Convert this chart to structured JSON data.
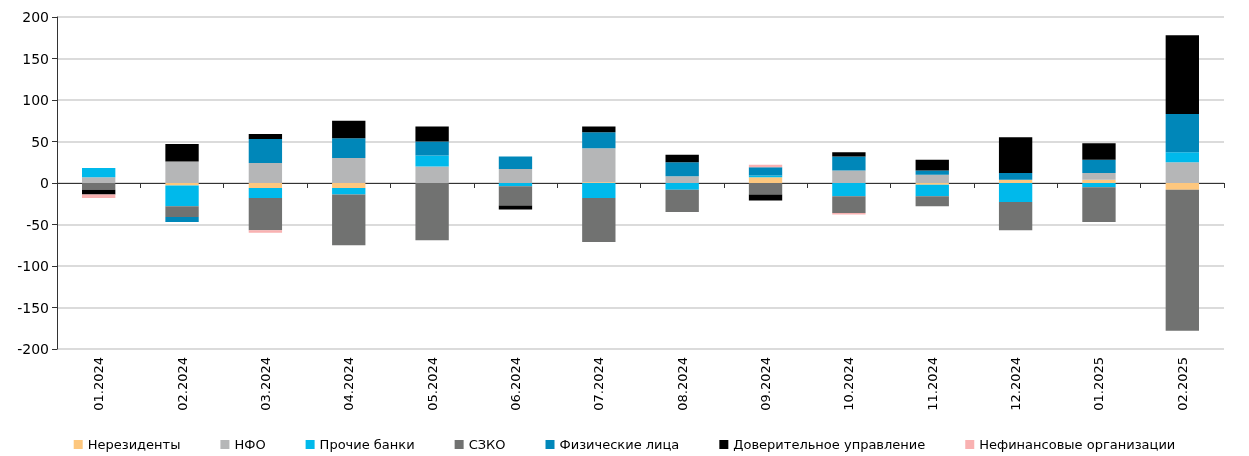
{
  "chart_data": {
    "type": "bar",
    "stacked": true,
    "categories": [
      "01.2024",
      "02.2024",
      "03.2024",
      "04.2024",
      "05.2024",
      "06.2024",
      "07.2024",
      "08.2024",
      "09.2024",
      "10.2024",
      "11.2024",
      "12.2024",
      "01.2025",
      "02.2025"
    ],
    "series": [
      {
        "name": "Нерезиденты",
        "color": "#fdc77e",
        "values": [
          null,
          -3,
          -6,
          -6,
          null,
          null,
          1,
          null,
          7,
          null,
          -2,
          4,
          4,
          -8
        ]
      },
      {
        "name": "НФО",
        "color": "#b5b6b7",
        "values": [
          7,
          26,
          24,
          30,
          20,
          17,
          41,
          8,
          null,
          15,
          10,
          null,
          8,
          25
        ]
      },
      {
        "name": "Прочие банки",
        "color": "#00b9eb",
        "values": [
          11,
          -25,
          -12,
          -8,
          13,
          -4,
          -18,
          -8,
          2,
          -16,
          -14,
          -23,
          -5,
          12
        ]
      },
      {
        "name": "СЗКО",
        "color": "#717271",
        "values": [
          -8,
          -13,
          -39,
          -61,
          -69,
          -23,
          -53,
          -27,
          -14,
          -20,
          -12,
          -34,
          -42,
          -170
        ]
      },
      {
        "name": "Физические лица",
        "color": "#0087b9",
        "values": [
          null,
          -6,
          29,
          24,
          17,
          15,
          19,
          17,
          10,
          17,
          5,
          8,
          16,
          46
        ]
      },
      {
        "name": "Доверительное управление",
        "color": "#000000",
        "values": [
          -6,
          21,
          6,
          21,
          18,
          -5,
          7,
          9,
          -7,
          5,
          13,
          43,
          20,
          95
        ]
      },
      {
        "name": "Нефинансовые организации",
        "color": "#f9b1b1",
        "values": [
          -4,
          null,
          -3,
          null,
          null,
          null,
          null,
          null,
          3,
          -2,
          null,
          null,
          null,
          null
        ]
      }
    ],
    "ylim": [
      -200,
      200
    ],
    "yticks": [
      -200,
      -150,
      -100,
      -50,
      0,
      50,
      100,
      150,
      200
    ],
    "grid": "y",
    "legend": "bottom"
  }
}
